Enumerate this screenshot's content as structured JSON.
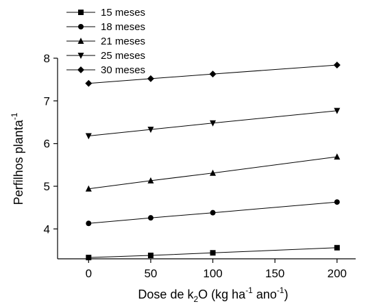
{
  "chart_data": {
    "type": "line",
    "title": "",
    "xlabel": {
      "prefix": "Dose de k",
      "sub": "2",
      "mid1": "O (kg ha",
      "sup1": "-1",
      "mid2": " ano",
      "sup2": "-1",
      "suffix": ")"
    },
    "ylabel": {
      "text": "Perfilhos planta",
      "sup": "-1"
    },
    "x": [
      0,
      50,
      100,
      200
    ],
    "xticks": [
      "0",
      "50",
      "100",
      "150",
      "200"
    ],
    "yticks": [
      "4",
      "5",
      "6",
      "7",
      "8"
    ],
    "xlim": [
      -25,
      215
    ],
    "ylim": [
      3.3,
      8.0
    ],
    "grid": false,
    "legend_position": "top-left",
    "series": [
      {
        "name": "15 meses",
        "marker": "square",
        "values": [
          3.33,
          3.38,
          3.44,
          3.56
        ]
      },
      {
        "name": "18 meses",
        "marker": "circle",
        "values": [
          4.13,
          4.26,
          4.38,
          4.63
        ]
      },
      {
        "name": "21 meses",
        "marker": "triangle-up",
        "values": [
          4.94,
          5.13,
          5.31,
          5.69
        ]
      },
      {
        "name": "25 meses",
        "marker": "triangle-down",
        "values": [
          6.18,
          6.33,
          6.48,
          6.77
        ]
      },
      {
        "name": "30 meses",
        "marker": "diamond",
        "values": [
          7.41,
          7.52,
          7.63,
          7.84
        ]
      }
    ]
  }
}
